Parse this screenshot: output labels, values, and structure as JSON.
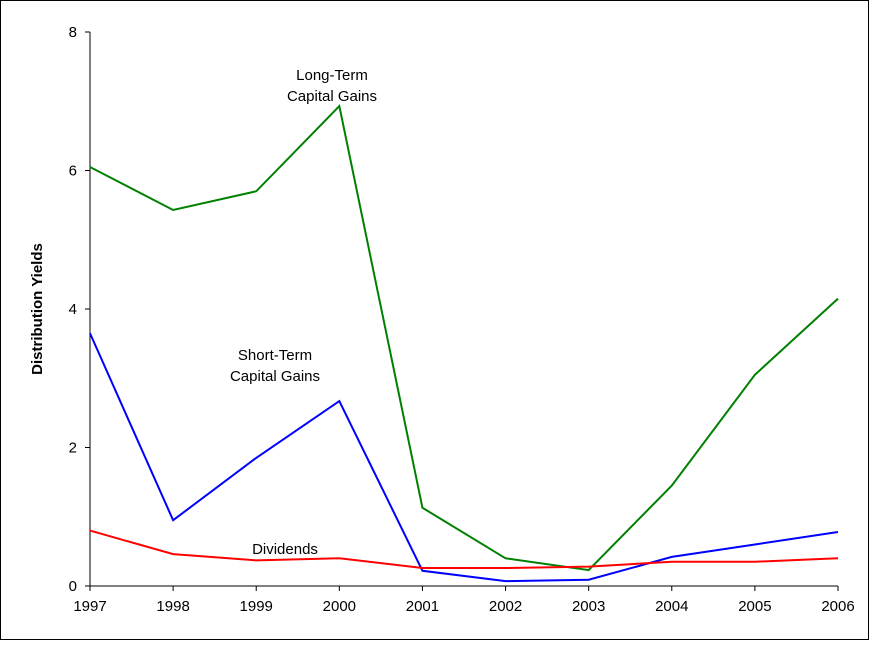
{
  "chart_data": {
    "type": "line",
    "y_label": "Distribution Yields",
    "x": [
      1997,
      1998,
      1999,
      2000,
      2001,
      2002,
      2003,
      2004,
      2005,
      2006
    ],
    "xlim": [
      1997,
      2006
    ],
    "xticks": [
      1997,
      1998,
      1999,
      2000,
      2001,
      2002,
      2003,
      2004,
      2005,
      2006
    ],
    "ylim": [
      0,
      8
    ],
    "yticks": [
      0,
      2,
      4,
      6,
      8
    ],
    "series": [
      {
        "label": [
          "Long-Term",
          "Capital Gains"
        ],
        "color": "#008000",
        "values": [
          6.05,
          5.43,
          5.7,
          6.93,
          1.13,
          0.4,
          0.23,
          1.45,
          3.05,
          4.15
        ]
      },
      {
        "label": [
          "Short-Term",
          "Capital Gains"
        ],
        "color": "#0000ff",
        "values": [
          3.65,
          0.95,
          1.85,
          2.67,
          0.22,
          0.07,
          0.09,
          0.42,
          0.6,
          0.78
        ]
      },
      {
        "label": [
          "Dividends"
        ],
        "color": "#ff0000",
        "values": [
          0.8,
          0.46,
          0.37,
          0.4,
          0.26,
          0.26,
          0.28,
          0.35,
          0.35,
          0.4
        ]
      }
    ]
  }
}
